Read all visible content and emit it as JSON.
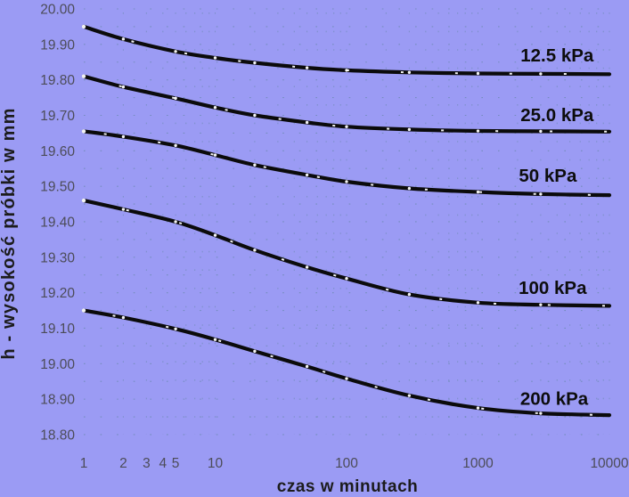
{
  "colors": {
    "background": "#9b9bf4",
    "curve": "#0b0b0b",
    "curve_marker": "#ffffff",
    "tick_label": "#4c4c58",
    "axis_title": "#1c1c1c",
    "series_label": "#0d0d0d",
    "grid_dot": "#3d7a6e"
  },
  "chart_data": {
    "type": "line",
    "title": "",
    "xlabel": "czas w minutach",
    "ylabel": "h - wysokość próbki w mm",
    "x_scale": "log",
    "x_range": [
      1,
      10000
    ],
    "y_range": [
      18.8,
      20.0
    ],
    "grid": {
      "style": "dotted",
      "h_step": 0.05,
      "v_minor_log": true
    },
    "legend_position": "labels-on-curves",
    "x_ticks": [
      {
        "value": 1,
        "label": "1"
      },
      {
        "value": 2,
        "label": "2"
      },
      {
        "value": 3,
        "label": "3"
      },
      {
        "value": 4,
        "label": "4"
      },
      {
        "value": 5,
        "label": "5"
      },
      {
        "value": 10,
        "label": "10"
      },
      {
        "value": 100,
        "label": "100"
      },
      {
        "value": 1000,
        "label": "1000"
      },
      {
        "value": 10000,
        "label": "10000"
      }
    ],
    "y_ticks": [
      {
        "value": 20.0,
        "label": "20.00"
      },
      {
        "value": 19.9,
        "label": "19.90"
      },
      {
        "value": 19.8,
        "label": "19.80"
      },
      {
        "value": 19.7,
        "label": "19.70"
      },
      {
        "value": 19.6,
        "label": "19.60"
      },
      {
        "value": 19.5,
        "label": "19.50"
      },
      {
        "value": 19.4,
        "label": "19.40"
      },
      {
        "value": 19.3,
        "label": "19.30"
      },
      {
        "value": 19.2,
        "label": "19.20"
      },
      {
        "value": 19.1,
        "label": "19.10"
      },
      {
        "value": 19.0,
        "label": "19.00"
      },
      {
        "value": 18.9,
        "label": "18.90"
      },
      {
        "value": 18.8,
        "label": "18.80"
      }
    ],
    "series": [
      {
        "name": "12.5 kPa",
        "label_t": 4000,
        "label_h": 19.869,
        "points": [
          [
            1,
            19.95
          ],
          [
            2,
            19.915
          ],
          [
            5,
            19.88
          ],
          [
            10,
            19.862
          ],
          [
            20,
            19.848
          ],
          [
            50,
            19.834
          ],
          [
            100,
            19.827
          ],
          [
            300,
            19.821
          ],
          [
            1000,
            19.818
          ],
          [
            3000,
            19.817
          ],
          [
            10000,
            19.816
          ]
        ]
      },
      {
        "name": "25.0 kPa",
        "label_t": 4000,
        "label_h": 19.701,
        "points": [
          [
            1,
            19.81
          ],
          [
            2,
            19.78
          ],
          [
            5,
            19.748
          ],
          [
            10,
            19.722
          ],
          [
            20,
            19.7
          ],
          [
            50,
            19.68
          ],
          [
            100,
            19.668
          ],
          [
            300,
            19.66
          ],
          [
            1000,
            19.656
          ],
          [
            3000,
            19.655
          ],
          [
            10000,
            19.654
          ]
        ]
      },
      {
        "name": "50 kPa",
        "label_t": 3400,
        "label_h": 19.53,
        "points": [
          [
            1,
            19.655
          ],
          [
            2,
            19.64
          ],
          [
            5,
            19.615
          ],
          [
            10,
            19.588
          ],
          [
            20,
            19.56
          ],
          [
            50,
            19.532
          ],
          [
            100,
            19.513
          ],
          [
            300,
            19.494
          ],
          [
            1000,
            19.484
          ],
          [
            3000,
            19.478
          ],
          [
            10000,
            19.475
          ]
        ]
      },
      {
        "name": "100 kPa",
        "label_t": 3700,
        "label_h": 19.214,
        "points": [
          [
            1,
            19.46
          ],
          [
            2,
            19.435
          ],
          [
            5,
            19.4
          ],
          [
            10,
            19.362
          ],
          [
            20,
            19.32
          ],
          [
            50,
            19.272
          ],
          [
            100,
            19.24
          ],
          [
            300,
            19.195
          ],
          [
            1000,
            19.172
          ],
          [
            3000,
            19.166
          ],
          [
            10000,
            19.163
          ]
        ]
      },
      {
        "name": "200 kPa",
        "label_t": 3800,
        "label_h": 18.902,
        "points": [
          [
            1,
            19.15
          ],
          [
            2,
            19.13
          ],
          [
            5,
            19.098
          ],
          [
            10,
            19.068
          ],
          [
            20,
            19.035
          ],
          [
            50,
            18.992
          ],
          [
            100,
            18.958
          ],
          [
            300,
            18.91
          ],
          [
            1000,
            18.875
          ],
          [
            3000,
            18.86
          ],
          [
            10000,
            18.855
          ]
        ]
      }
    ]
  }
}
